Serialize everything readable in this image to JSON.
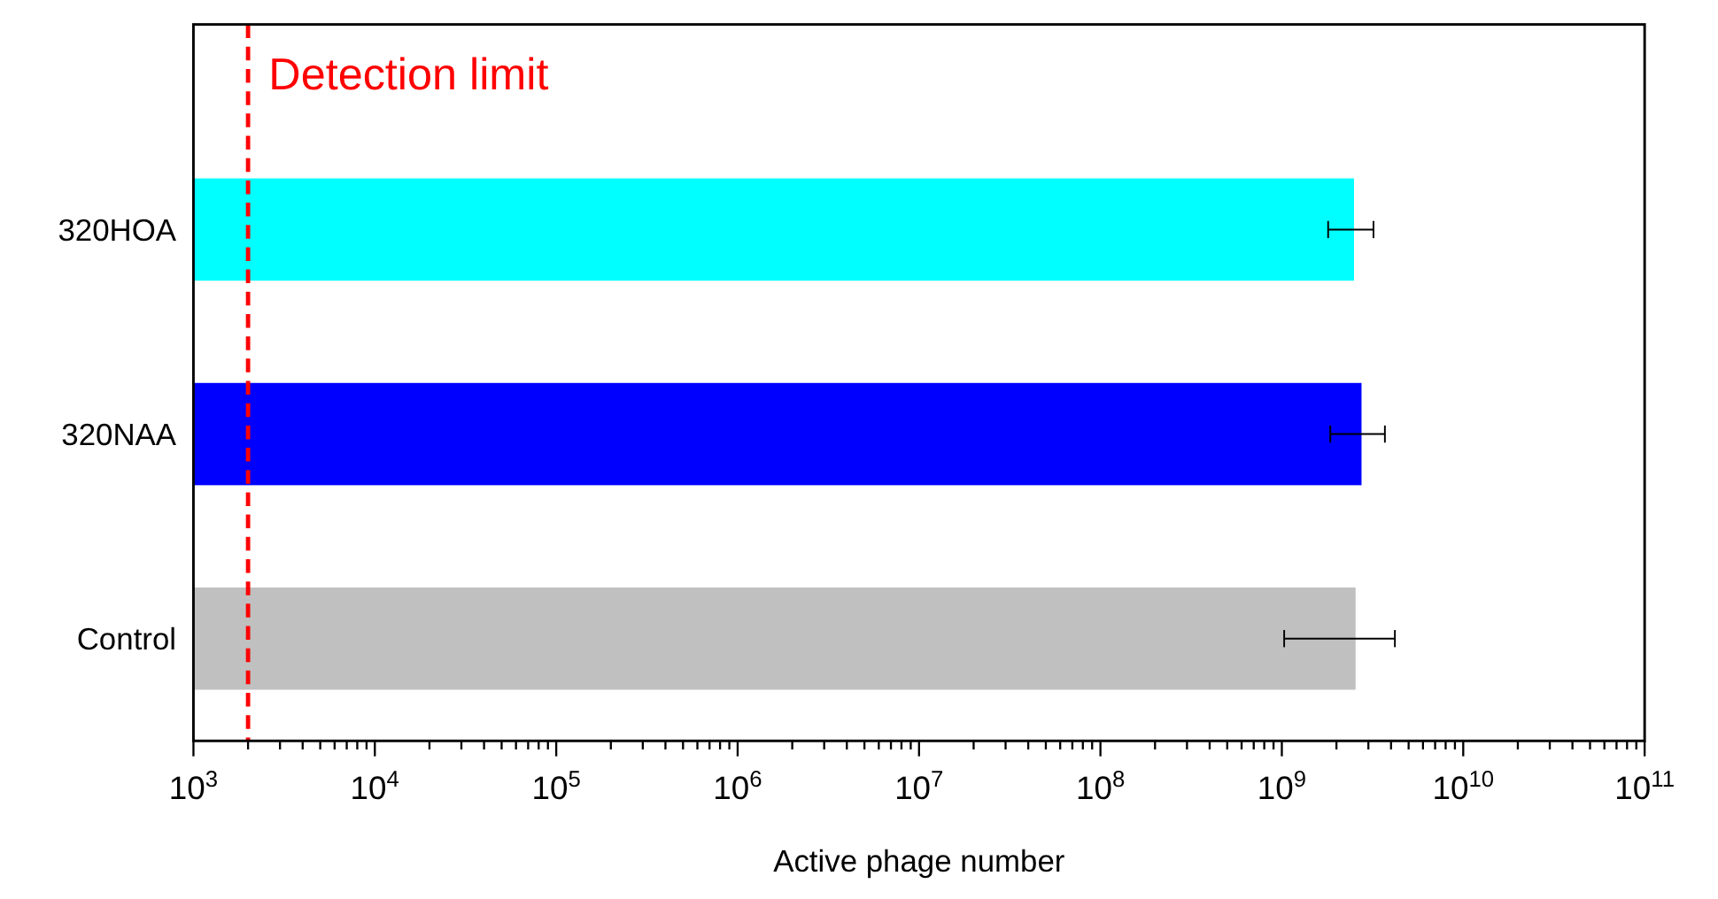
{
  "chart_data": {
    "type": "bar",
    "orientation": "horizontal",
    "log": "x",
    "xlabel": "Active phage number",
    "categories": [
      "320HOA",
      "320NAA",
      "Control"
    ],
    "values": [
      2500000000,
      2750000000,
      2550000000
    ],
    "colors": [
      "#00ffff",
      "#0000ff",
      "#c0c0c0"
    ],
    "errors": [
      [
        1800000000,
        3200000000
      ],
      [
        1850000000,
        3700000000
      ],
      [
        1030000000,
        4200000000
      ]
    ],
    "xlim": [
      1000,
      100000000000
    ],
    "xticks": [
      {
        "value": 1000,
        "label": "10$^{3}$"
      },
      {
        "value": 10000,
        "label": "10$^{4}$"
      },
      {
        "value": 100000,
        "label": "10$^{5}$"
      },
      {
        "value": 1000000,
        "label": "10$^{6}$"
      },
      {
        "value": 10000000,
        "label": "10$^{7}$"
      },
      {
        "value": 100000000,
        "label": "10$^{8}$"
      },
      {
        "value": 1000000000,
        "label": "10$^{9}$"
      },
      {
        "value": 10000000000,
        "label": "10$^{10}$"
      },
      {
        "value": 100000000000,
        "label": "10$^{11}$"
      },
      {
        "value": 2000,
        "label": null
      },
      {
        "value": 3000,
        "label": null
      },
      {
        "value": 4000,
        "label": null
      },
      {
        "value": 5000,
        "label": null
      },
      {
        "value": 6000,
        "label": null
      },
      {
        "value": 7000,
        "label": null
      },
      {
        "value": 8000,
        "label": null
      },
      {
        "value": 9000,
        "label": null
      },
      {
        "value": 20000,
        "label": null
      },
      {
        "value": 30000,
        "label": null
      },
      {
        "value": 40000,
        "label": null
      },
      {
        "value": 50000,
        "label": null
      },
      {
        "value": 60000,
        "label": null
      },
      {
        "value": 70000,
        "label": null
      },
      {
        "value": 80000,
        "label": null
      },
      {
        "value": 90000,
        "label": null
      },
      {
        "value": 200000,
        "label": null
      },
      {
        "value": 300000,
        "label": null
      },
      {
        "value": 400000,
        "label": null
      },
      {
        "value": 500000,
        "label": null
      },
      {
        "value": 600000,
        "label": null
      },
      {
        "value": 700000,
        "label": null
      },
      {
        "value": 800000,
        "label": null
      },
      {
        "value": 900000,
        "label": null
      },
      {
        "value": 2000000,
        "label": null
      },
      {
        "value": 3000000,
        "label": null
      },
      {
        "value": 4000000,
        "label": null
      },
      {
        "value": 5000000,
        "label": null
      },
      {
        "value": 6000000,
        "label": null
      },
      {
        "value": 7000000,
        "label": null
      },
      {
        "value": 8000000,
        "label": null
      },
      {
        "value": 9000000,
        "label": null
      },
      {
        "value": 20000000,
        "label": null
      },
      {
        "value": 30000000,
        "label": null
      },
      {
        "value": 40000000,
        "label": null
      },
      {
        "value": 50000000,
        "label": null
      },
      {
        "value": 60000000,
        "label": null
      },
      {
        "value": 70000000,
        "label": null
      },
      {
        "value": 80000000,
        "label": null
      },
      {
        "value": 90000000,
        "label": null
      },
      {
        "value": 200000000,
        "label": null
      },
      {
        "value": 300000000,
        "label": null
      },
      {
        "value": 400000000,
        "label": null
      },
      {
        "value": 500000000,
        "label": null
      },
      {
        "value": 600000000,
        "label": null
      },
      {
        "value": 700000000,
        "label": null
      },
      {
        "value": 800000000,
        "label": null
      },
      {
        "value": 900000000,
        "label": null
      },
      {
        "value": 2000000000,
        "label": null
      },
      {
        "value": 3000000000,
        "label": null
      },
      {
        "value": 4000000000,
        "label": null
      },
      {
        "value": 5000000000,
        "label": null
      },
      {
        "value": 6000000000,
        "label": null
      },
      {
        "value": 7000000000,
        "label": null
      },
      {
        "value": 8000000000,
        "label": null
      },
      {
        "value": 9000000000,
        "label": null
      },
      {
        "value": 20000000000,
        "label": null
      },
      {
        "value": 30000000000,
        "label": null
      },
      {
        "value": 40000000000,
        "label": null
      },
      {
        "value": 50000000000,
        "label": null
      },
      {
        "value": 60000000000,
        "label": null
      },
      {
        "value": 70000000000,
        "label": null
      },
      {
        "value": 80000000000,
        "label": null
      },
      {
        "value": 90000000000,
        "label": null
      }
    ],
    "ref_lines": [
      {
        "axis": "x",
        "value": 2000,
        "label": "Detection limit",
        "color": "#ff0000",
        "line_style": "dashed"
      }
    ],
    "grid": false
  }
}
